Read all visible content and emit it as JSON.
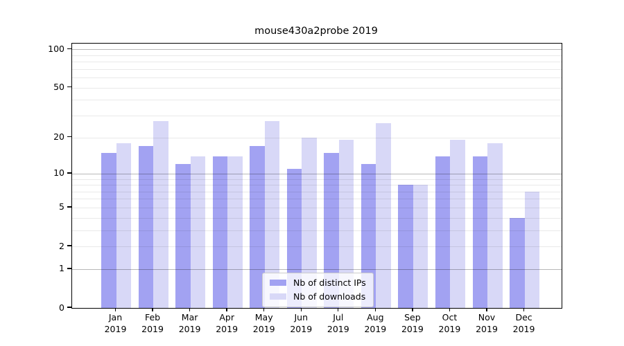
{
  "chart_data": {
    "type": "bar",
    "title": "mouse430a2probe 2019",
    "categories": [
      "Jan",
      "Feb",
      "Mar",
      "Apr",
      "May",
      "Jun",
      "Jul",
      "Aug",
      "Sep",
      "Oct",
      "Nov",
      "Dec"
    ],
    "category_year": "2019",
    "series": [
      {
        "name": "Nb of distinct IPs",
        "color": "#a2a2f2",
        "values": [
          15,
          17,
          12,
          14,
          17,
          11,
          15,
          12,
          8,
          14,
          14,
          4
        ]
      },
      {
        "name": "Nb of downloads",
        "color": "#d8d8f7",
        "values": [
          18,
          27,
          14,
          14,
          27,
          20,
          19,
          26,
          8,
          19,
          18,
          7
        ]
      }
    ],
    "yscale": "log1p",
    "yticks": [
      0,
      1,
      2,
      5,
      10,
      20,
      50,
      100
    ],
    "ylim": [
      0,
      111
    ],
    "grid": {
      "major": [
        1,
        10,
        100
      ],
      "minor": [
        2,
        3,
        4,
        5,
        6,
        7,
        8,
        9,
        20,
        30,
        40,
        50,
        60,
        70,
        80,
        90
      ]
    },
    "legend_position": "lower center",
    "xlabel": "",
    "ylabel": ""
  }
}
